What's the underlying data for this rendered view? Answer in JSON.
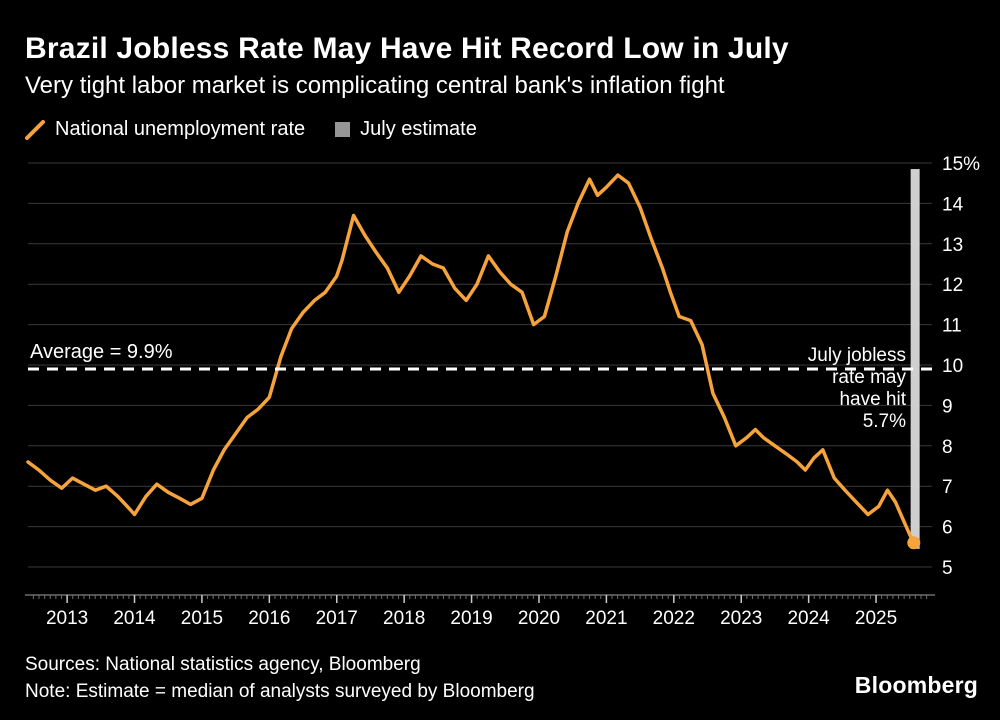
{
  "header": {
    "title": "Brazil Jobless Rate May Have Hit Record Low in July",
    "subtitle": "Very tight labor market is complicating central bank's inflation fight"
  },
  "legend": [
    {
      "label": "National unemployment rate",
      "type": "line",
      "color": "#f7a33c"
    },
    {
      "label": "July estimate",
      "type": "square",
      "color": "#969696"
    }
  ],
  "footer": {
    "sources": "Sources: National statistics agency, Bloomberg",
    "note": "Note: Estimate = median of analysts surveyed by Bloomberg",
    "logo": "Bloomberg"
  },
  "chart_data": {
    "type": "line",
    "title": "Brazil Jobless Rate May Have Hit Record Low in July",
    "x_range": [
      2012.42,
      2025.83
    ],
    "y_range": [
      5,
      15
    ],
    "grid": true,
    "legend_position": "top-left",
    "line_color": "#f7a33c",
    "grid_color": "#3a3a3a",
    "axis_color": "#6e6e6e",
    "estimate_bar_color": "#cfcfcf",
    "average_line_color": "#ffffff",
    "x_ticks": [
      2013,
      2014,
      2015,
      2016,
      2017,
      2018,
      2019,
      2020,
      2021,
      2022,
      2023,
      2024,
      2025
    ],
    "y_ticks": [
      {
        "v": 15,
        "label": "15%"
      },
      {
        "v": 14,
        "label": "14"
      },
      {
        "v": 13,
        "label": "13"
      },
      {
        "v": 12,
        "label": "12"
      },
      {
        "v": 11,
        "label": "11"
      },
      {
        "v": 10,
        "label": "10"
      },
      {
        "v": 9,
        "label": "9"
      },
      {
        "v": 8,
        "label": "8"
      },
      {
        "v": 7,
        "label": "7"
      },
      {
        "v": 6,
        "label": "6"
      },
      {
        "v": 5,
        "label": "5"
      }
    ],
    "average": {
      "value": 9.9,
      "label": "Average = 9.9%"
    },
    "annotation": {
      "text": "July jobless\nrate may\nhave hit\n5.7%"
    },
    "july_estimate": {
      "x": 2025.58,
      "value": 5.7
    },
    "series": [
      {
        "name": "National unemployment rate",
        "color": "#f7a33c",
        "points": [
          [
            2012.42,
            7.6
          ],
          [
            2012.58,
            7.4
          ],
          [
            2012.75,
            7.15
          ],
          [
            2012.92,
            6.95
          ],
          [
            2013.08,
            7.2
          ],
          [
            2013.25,
            7.05
          ],
          [
            2013.42,
            6.9
          ],
          [
            2013.58,
            7.0
          ],
          [
            2013.75,
            6.75
          ],
          [
            2013.92,
            6.45
          ],
          [
            2014.0,
            6.3
          ],
          [
            2014.17,
            6.75
          ],
          [
            2014.33,
            7.05
          ],
          [
            2014.5,
            6.85
          ],
          [
            2014.67,
            6.7
          ],
          [
            2014.83,
            6.55
          ],
          [
            2015.0,
            6.7
          ],
          [
            2015.17,
            7.4
          ],
          [
            2015.33,
            7.9
          ],
          [
            2015.5,
            8.3
          ],
          [
            2015.67,
            8.7
          ],
          [
            2015.83,
            8.9
          ],
          [
            2016.0,
            9.2
          ],
          [
            2016.17,
            10.2
          ],
          [
            2016.33,
            10.9
          ],
          [
            2016.5,
            11.3
          ],
          [
            2016.67,
            11.6
          ],
          [
            2016.83,
            11.8
          ],
          [
            2017.0,
            12.2
          ],
          [
            2017.08,
            12.6
          ],
          [
            2017.25,
            13.7
          ],
          [
            2017.42,
            13.2
          ],
          [
            2017.58,
            12.8
          ],
          [
            2017.75,
            12.4
          ],
          [
            2017.92,
            11.8
          ],
          [
            2018.08,
            12.2
          ],
          [
            2018.25,
            12.7
          ],
          [
            2018.42,
            12.5
          ],
          [
            2018.58,
            12.4
          ],
          [
            2018.75,
            11.9
          ],
          [
            2018.92,
            11.6
          ],
          [
            2019.08,
            12.0
          ],
          [
            2019.25,
            12.7
          ],
          [
            2019.42,
            12.3
          ],
          [
            2019.58,
            12.0
          ],
          [
            2019.75,
            11.8
          ],
          [
            2019.92,
            11.0
          ],
          [
            2020.08,
            11.2
          ],
          [
            2020.25,
            12.2
          ],
          [
            2020.42,
            13.3
          ],
          [
            2020.58,
            14.0
          ],
          [
            2020.75,
            14.6
          ],
          [
            2020.87,
            14.2
          ],
          [
            2021.0,
            14.4
          ],
          [
            2021.17,
            14.7
          ],
          [
            2021.33,
            14.5
          ],
          [
            2021.5,
            13.9
          ],
          [
            2021.67,
            13.1
          ],
          [
            2021.83,
            12.4
          ],
          [
            2021.95,
            11.8
          ],
          [
            2022.08,
            11.2
          ],
          [
            2022.25,
            11.1
          ],
          [
            2022.42,
            10.5
          ],
          [
            2022.58,
            9.3
          ],
          [
            2022.75,
            8.7
          ],
          [
            2022.92,
            8.0
          ],
          [
            2023.08,
            8.2
          ],
          [
            2023.21,
            8.4
          ],
          [
            2023.33,
            8.2
          ],
          [
            2023.5,
            8.0
          ],
          [
            2023.67,
            7.8
          ],
          [
            2023.83,
            7.6
          ],
          [
            2023.95,
            7.4
          ],
          [
            2024.08,
            7.7
          ],
          [
            2024.21,
            7.9
          ],
          [
            2024.38,
            7.2
          ],
          [
            2024.54,
            6.9
          ],
          [
            2024.71,
            6.6
          ],
          [
            2024.88,
            6.3
          ],
          [
            2025.04,
            6.5
          ],
          [
            2025.17,
            6.9
          ],
          [
            2025.29,
            6.6
          ],
          [
            2025.42,
            6.1
          ],
          [
            2025.5,
            5.8
          ],
          [
            2025.56,
            5.6
          ]
        ]
      }
    ]
  }
}
